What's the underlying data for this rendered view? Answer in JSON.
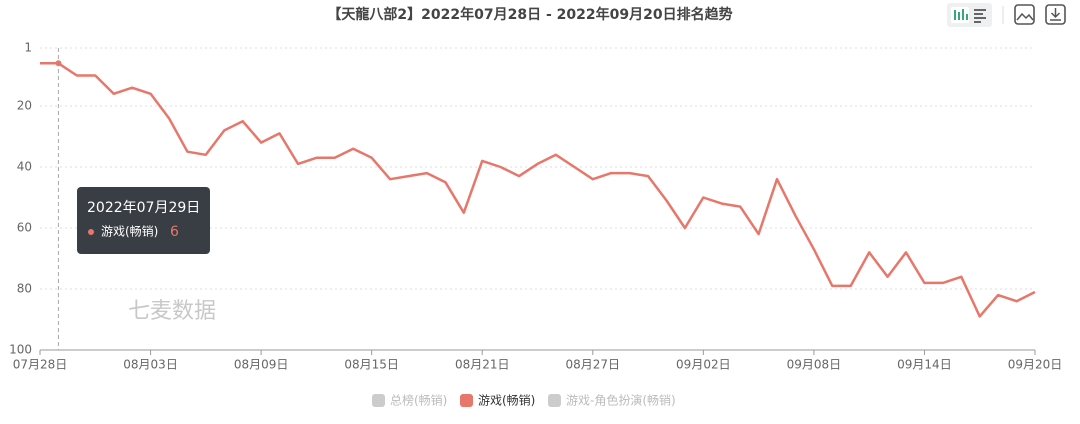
{
  "chart_data": {
    "type": "line",
    "title": "【天龍八部2】2022年07月28日 - 2022年09月20日排名趋势",
    "categories": [
      "07月28日",
      null,
      null,
      null,
      null,
      null,
      "08月03日",
      null,
      null,
      null,
      null,
      null,
      "08月09日",
      null,
      null,
      null,
      null,
      null,
      "08月15日",
      null,
      null,
      null,
      null,
      null,
      "08月21日",
      null,
      null,
      null,
      null,
      null,
      "08月27日",
      null,
      null,
      null,
      null,
      null,
      "09月02日",
      null,
      null,
      null,
      null,
      null,
      "09月08日",
      null,
      null,
      null,
      null,
      null,
      "09月14日",
      null,
      null,
      null,
      null,
      null,
      "09月20日"
    ],
    "series": [
      {
        "name": "游戏(畅销)",
        "color": "#e8776b",
        "values": [
          6,
          6,
          10,
          10,
          16,
          14,
          16,
          24,
          35,
          36,
          28,
          25,
          32,
          29,
          39,
          37,
          37,
          34,
          37,
          44,
          43,
          42,
          45,
          55,
          38,
          40,
          43,
          39,
          36,
          40,
          44,
          42,
          42,
          43,
          51,
          60,
          50,
          52,
          53,
          62,
          44,
          56,
          67,
          79,
          79,
          68,
          76,
          68,
          78,
          78,
          76,
          89,
          82,
          84,
          81
        ]
      }
    ],
    "hidden_series": [
      {
        "name": "总榜(畅销)",
        "color": "#cccccc"
      },
      {
        "name": "游戏-角色扮演(畅销)",
        "color": "#cccccc"
      }
    ],
    "ylim": [
      1,
      100
    ],
    "yticks": [
      1,
      20,
      40,
      60,
      80,
      100
    ],
    "y_inverted": true,
    "grid": true,
    "tooltip": {
      "index": 1,
      "title": "2022年07月29日"
    },
    "watermark": "七麦数据"
  }
}
